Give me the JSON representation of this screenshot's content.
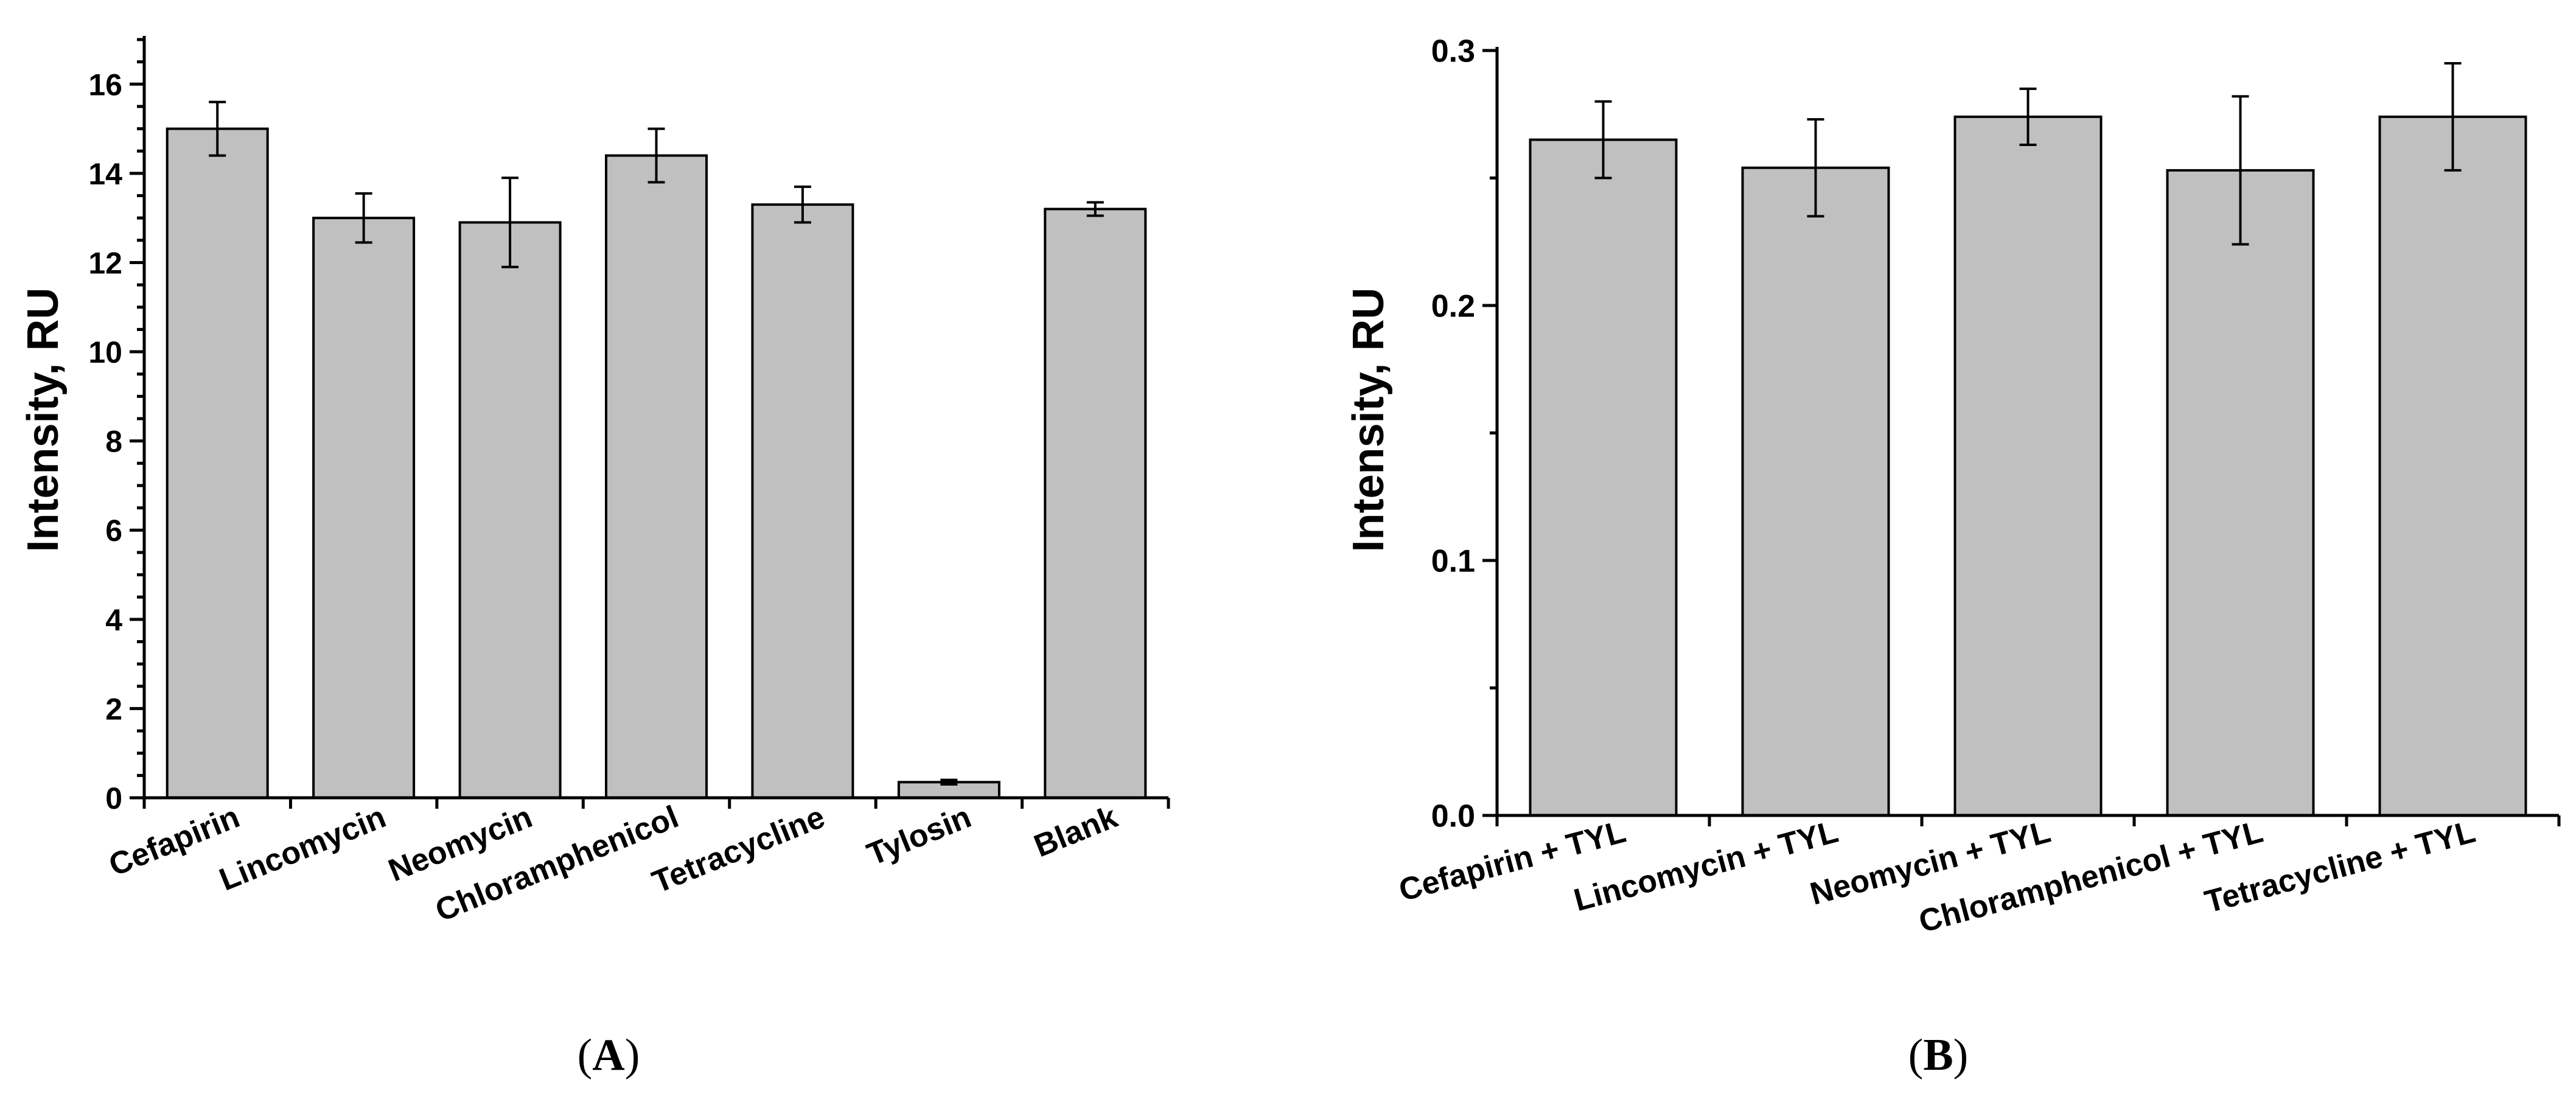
{
  "chart_data": [
    {
      "type": "bar",
      "panel_label": "(A)",
      "title": "",
      "xlabel": "",
      "ylabel": "Intensity, RU",
      "ylim": [
        0,
        17
      ],
      "yticks": [
        0,
        2,
        4,
        6,
        8,
        10,
        12,
        14,
        16
      ],
      "ytick_labels": [
        "0",
        "2",
        "4",
        "6",
        "8",
        "10",
        "12",
        "14",
        "16"
      ],
      "categories": [
        "Cefapirin",
        "Lincomycin",
        "Neomycin",
        "Chloramphenicol",
        "Tetracycline",
        "Tylosin",
        "Blank"
      ],
      "values": [
        15.0,
        13.0,
        12.9,
        14.4,
        13.3,
        0.35,
        13.2
      ],
      "errors": [
        0.6,
        0.55,
        1.0,
        0.6,
        0.4,
        0.05,
        0.15
      ],
      "grid": false,
      "bar_color": "#c0c0c0"
    },
    {
      "type": "bar",
      "panel_label": "(B)",
      "title": "",
      "xlabel": "",
      "ylabel": "Intensity, RU",
      "ylim": [
        0,
        0.3
      ],
      "yticks": [
        0,
        0.1,
        0.2,
        0.3
      ],
      "ytick_labels": [
        "0.0",
        "0.1",
        "0.2",
        "0.3"
      ],
      "categories": [
        "Cefapirin + TYL",
        "Lincomycin + TYL",
        "Neomycin + TYL",
        "Chloramphenicol + TYL",
        "Tetracycline + TYL"
      ],
      "values": [
        0.265,
        0.254,
        0.274,
        0.253,
        0.274
      ],
      "errors": [
        0.015,
        0.019,
        0.011,
        0.029,
        0.021
      ],
      "grid": false,
      "bar_color": "#c0c0c0"
    }
  ]
}
